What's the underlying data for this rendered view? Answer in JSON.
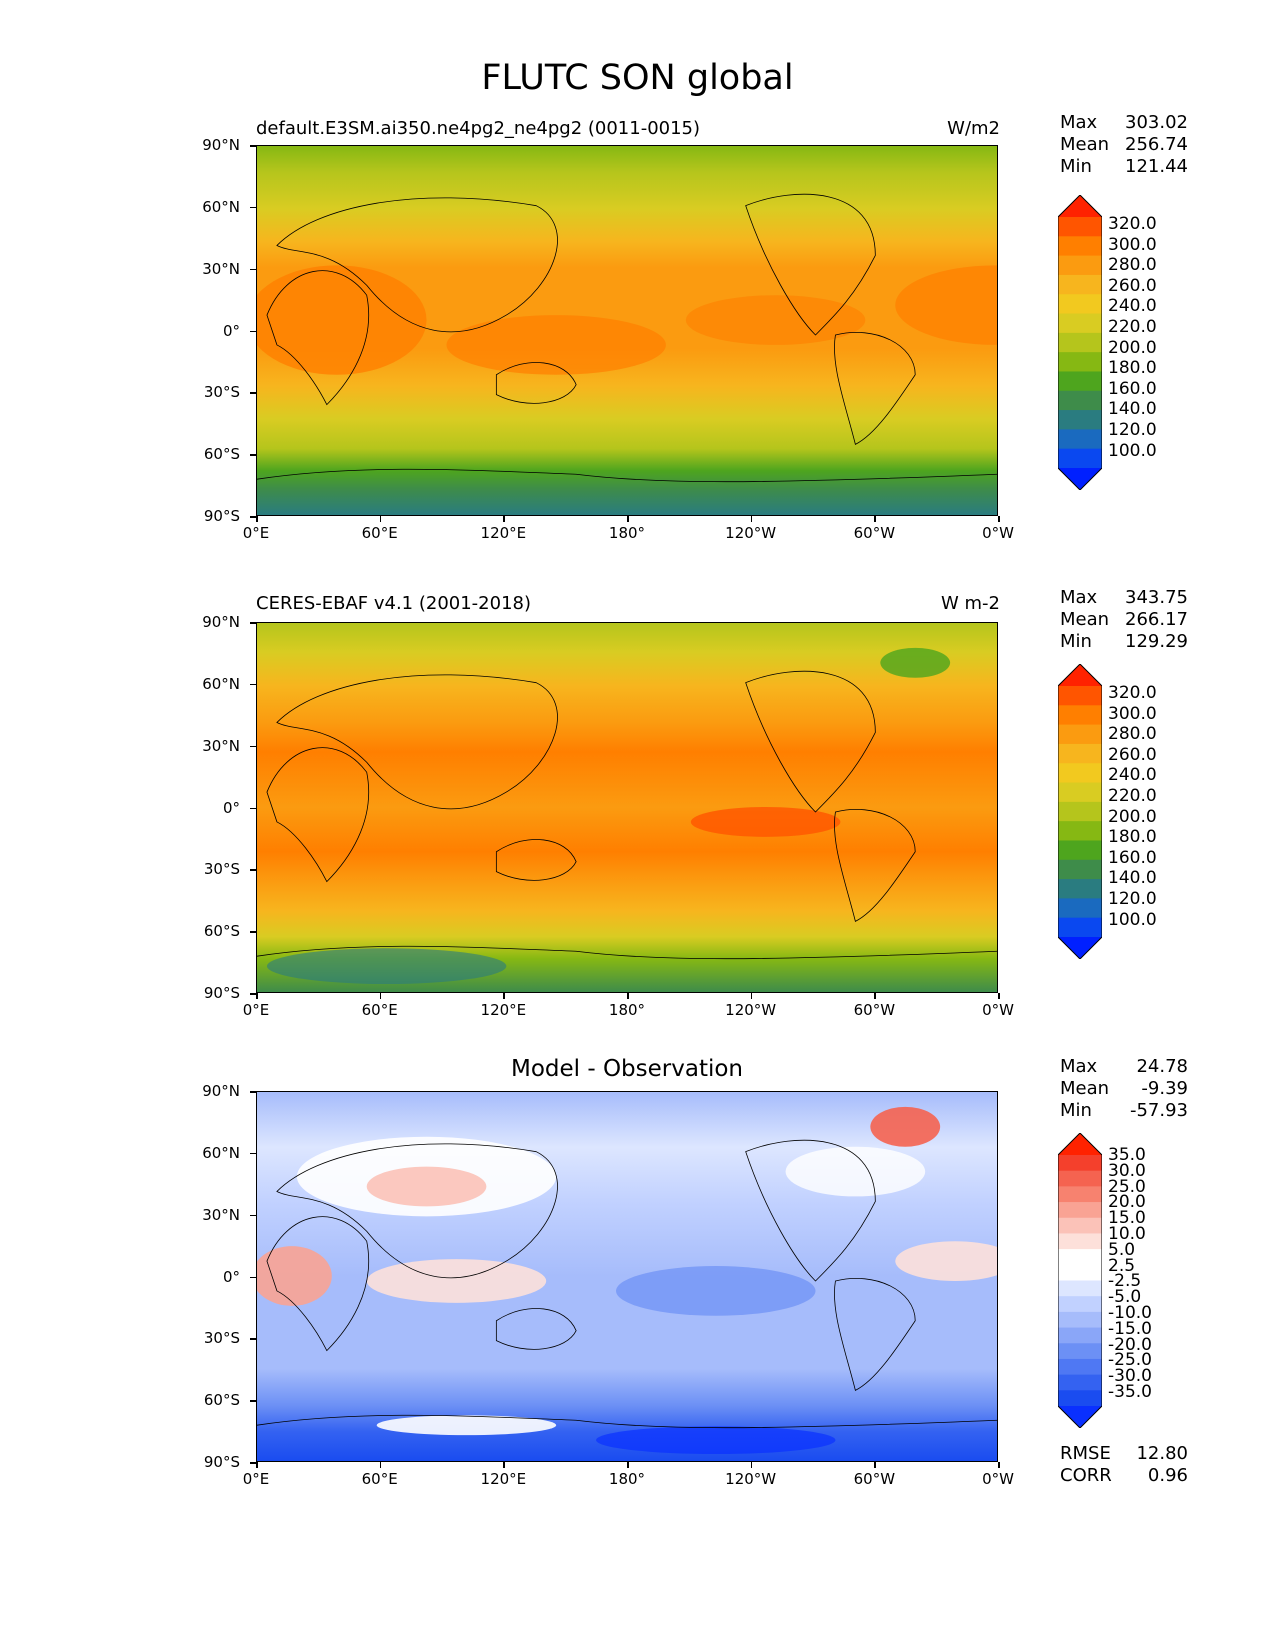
{
  "title": "FLUTC SON global",
  "x_ticks": [
    "0°E",
    "60°E",
    "120°E",
    "180°",
    "120°W",
    "60°W",
    "0°W"
  ],
  "y_ticks": [
    "90°N",
    "60°N",
    "30°N",
    "0°",
    "30°S",
    "60°S",
    "90°S"
  ],
  "panels": [
    {
      "title_left": "default.E3SM.ai350.ne4pg2_ne4pg2 (0011-0015)",
      "title_right": "W/m2",
      "title_center": "",
      "stats": {
        "max_label": "Max",
        "max": "303.02",
        "mean_label": "Mean",
        "mean": "256.74",
        "min_label": "Min",
        "min": "121.44"
      },
      "colorbar_labels": [
        "320.0",
        "300.0",
        "280.0",
        "260.0",
        "240.0",
        "220.0",
        "200.0",
        "180.0",
        "160.0",
        "140.0",
        "120.0",
        "100.0"
      ]
    },
    {
      "title_left": "CERES-EBAF v4.1 (2001-2018)",
      "title_right": "W m-2",
      "title_center": "",
      "stats": {
        "max_label": "Max",
        "max": "343.75",
        "mean_label": "Mean",
        "mean": "266.17",
        "min_label": "Min",
        "min": "129.29"
      },
      "colorbar_labels": [
        "320.0",
        "300.0",
        "280.0",
        "260.0",
        "240.0",
        "220.0",
        "200.0",
        "180.0",
        "160.0",
        "140.0",
        "120.0",
        "100.0"
      ]
    },
    {
      "title_left": "",
      "title_right": "",
      "title_center": "Model - Observation",
      "stats": {
        "max_label": "Max",
        "max": "24.78",
        "mean_label": "Mean",
        "mean": "-9.39",
        "min_label": "Min",
        "min": "-57.93"
      },
      "colorbar_labels": [
        "35.0",
        "30.0",
        "25.0",
        "20.0",
        "15.0",
        "10.0",
        "5.0",
        "2.5",
        "-2.5",
        "-5.0",
        "-10.0",
        "-15.0",
        "-20.0",
        "-25.0",
        "-30.0",
        "-35.0"
      ],
      "metrics": {
        "rmse_label": "RMSE",
        "rmse": "12.80",
        "corr_label": "CORR",
        "corr": "0.96"
      }
    }
  ],
  "colors": {
    "abs_scale": [
      "#ff2200",
      "#ff5500",
      "#ff7f00",
      "#fb9b10",
      "#f7b51e",
      "#f2c91f",
      "#d9cc22",
      "#b5c51c",
      "#86b813",
      "#4ea51e",
      "#3e8c4a",
      "#2a7c80",
      "#1a6abf",
      "#0a48f0",
      "#0020ff"
    ],
    "diff_scale": [
      "#ff2200",
      "#f4402c",
      "#f56350",
      "#f7826f",
      "#f9a394",
      "#fbc2b8",
      "#fde0da",
      "#ffffff",
      "#ffffff",
      "#dde6ff",
      "#c1d1ff",
      "#a6bcfb",
      "#8aa6f8",
      "#6c90f5",
      "#4f78f3",
      "#3462f1",
      "#1a4cf0",
      "#0a30ff"
    ]
  }
}
